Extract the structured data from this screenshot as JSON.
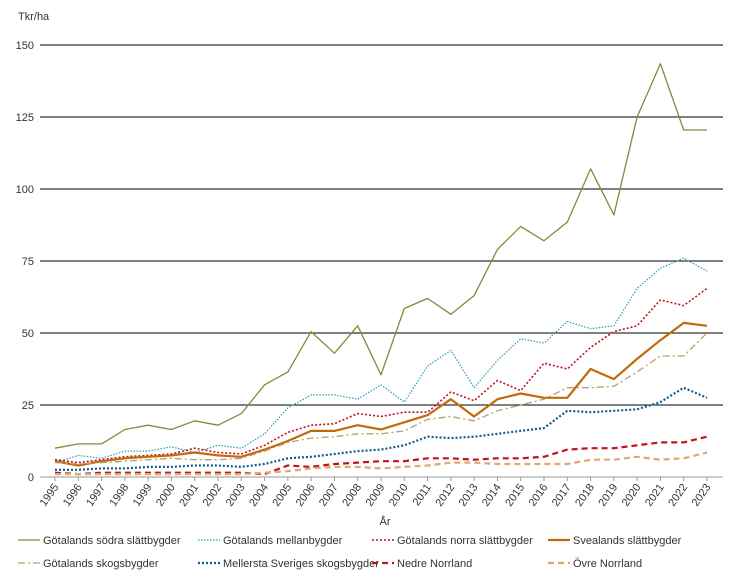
{
  "chart_data": {
    "type": "line",
    "ylabel": "Tkr/ha",
    "xlabel": "År",
    "ylim": [
      0,
      150
    ],
    "yticks": [
      0,
      25,
      50,
      75,
      100,
      125,
      150
    ],
    "grid": "horizontal",
    "legend_position": "bottom",
    "categories": [
      "1995",
      "1996",
      "1997",
      "1998",
      "1999",
      "2000",
      "2001",
      "2002",
      "2003",
      "2004",
      "2005",
      "2006",
      "2007",
      "2008",
      "2009",
      "2010",
      "2011",
      "2012",
      "2013",
      "2014",
      "2015",
      "2016",
      "2017",
      "2018",
      "2019",
      "2020",
      "2021",
      "2022",
      "2023"
    ],
    "series": [
      {
        "name": "Götalands södra slättbygder",
        "color": "#7f8c3a",
        "style": "solid",
        "width": 1.3,
        "values": [
          10,
          11.5,
          11.5,
          16.5,
          18,
          16.5,
          19.5,
          18,
          22,
          32,
          36.5,
          50.5,
          43,
          52.5,
          35.5,
          58.5,
          62,
          56.5,
          63,
          79,
          87,
          82,
          88.5,
          107,
          91,
          125,
          143.5,
          120.5,
          120.5
        ]
      },
      {
        "name": "Götalands mellanbygder",
        "color": "#2e9bb5",
        "style": "dotted-fine",
        "width": 1.2,
        "values": [
          5,
          7.5,
          6.5,
          9,
          9,
          10.5,
          8.5,
          11,
          10,
          15,
          24,
          28.5,
          28.5,
          27,
          32,
          26,
          38.5,
          44,
          31,
          40.5,
          48,
          46.5,
          54,
          51.5,
          52.5,
          65.5,
          72.5,
          76,
          71.5
        ]
      },
      {
        "name": "Götalands norra slättbygder",
        "color": "#c0121f",
        "style": "dotted",
        "width": 1.6,
        "values": [
          6,
          5,
          6,
          7,
          7.5,
          8,
          10,
          8.5,
          8,
          11,
          15.5,
          18,
          18.5,
          22,
          21,
          22.5,
          22.5,
          29.5,
          26.5,
          33.5,
          30,
          39.5,
          37.5,
          45,
          50.5,
          52.5,
          61.5,
          59.5,
          65.5
        ]
      },
      {
        "name": "Svealands slättbygder",
        "color": "#c06a0a",
        "style": "solid",
        "width": 2.2,
        "values": [
          5.5,
          4,
          5.5,
          6.5,
          7,
          7.5,
          8.5,
          7.5,
          7,
          9.5,
          12.5,
          16,
          16,
          18,
          16.5,
          19,
          21.5,
          27,
          21,
          27,
          29,
          27.5,
          27.5,
          37.5,
          34,
          41,
          47.5,
          53.5,
          52.5
        ]
      },
      {
        "name": "Götalands skogsbygder",
        "color": "#b8a06c",
        "style": "dashdot",
        "width": 1.3,
        "values": [
          5,
          4.5,
          5,
          5.5,
          6,
          6.5,
          6,
          6,
          6.5,
          9,
          12,
          13.5,
          14,
          15,
          15,
          16,
          20,
          21,
          19.5,
          23,
          25,
          27,
          31,
          31,
          31.5,
          36.5,
          42,
          42,
          50
        ]
      },
      {
        "name": "Mellersta Sveriges skogsbygder",
        "color": "#0f5d8f",
        "style": "dotted",
        "width": 2.2,
        "values": [
          2.5,
          2.5,
          3,
          3,
          3.5,
          3.5,
          4,
          4,
          3.5,
          4.5,
          6.5,
          7,
          8,
          9,
          9.5,
          11,
          14,
          13.5,
          14,
          15,
          16,
          17,
          23,
          22.5,
          23,
          23.5,
          26,
          31,
          27.5
        ]
      },
      {
        "name": "Nedre Norrland",
        "color": "#c0121f",
        "style": "dashed",
        "width": 2.2,
        "values": [
          1.5,
          1,
          1.5,
          1.5,
          1.5,
          1.5,
          1.5,
          1.5,
          1.5,
          1,
          4,
          3.5,
          4.5,
          5,
          5.5,
          5.5,
          6.5,
          6.5,
          6,
          6.5,
          6.5,
          7,
          9.5,
          10,
          10,
          11,
          12,
          12,
          14
        ]
      },
      {
        "name": "Övre Norrland",
        "color": "#e0a870",
        "style": "dashed",
        "width": 2.2,
        "values": [
          1,
          1,
          1,
          1,
          1,
          1,
          1,
          1,
          1,
          1.5,
          2,
          3,
          3.5,
          3.5,
          3,
          3.5,
          4,
          5,
          5,
          4.5,
          4.5,
          4.5,
          4.5,
          6,
          6,
          7,
          6,
          6.5,
          8.5
        ]
      }
    ]
  }
}
